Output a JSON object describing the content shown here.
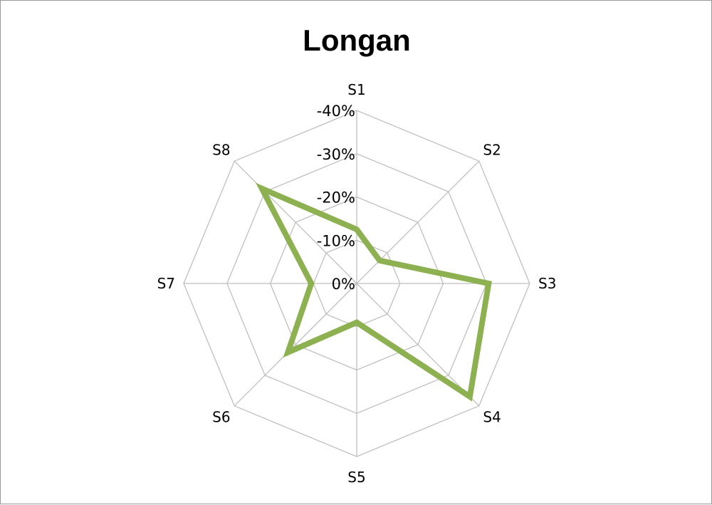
{
  "chart_data": {
    "type": "radar",
    "title": "Longan",
    "categories": [
      "S1",
      "S2",
      "S3",
      "S4",
      "S5",
      "S6",
      "S7",
      "S8"
    ],
    "radial_axis": {
      "min": 0,
      "max": -40,
      "ticks": [
        0,
        -10,
        -20,
        -30,
        -40
      ],
      "tick_labels": [
        "0%",
        "-10%",
        "-20%",
        "-30%",
        "-40%"
      ],
      "unit": "%"
    },
    "series": [
      {
        "color": "#8db050",
        "values": [
          -12.5,
          -7.5,
          -30.5,
          -37,
          -9,
          -22.5,
          -10.5,
          -31
        ]
      }
    ],
    "legend": "none",
    "grid": true
  }
}
